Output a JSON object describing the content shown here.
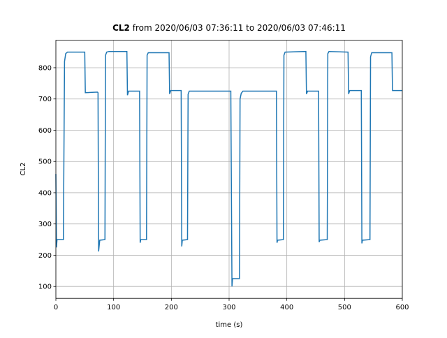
{
  "chart_data": {
    "type": "line",
    "title_bold": "CL2",
    "title": "from 2020/06/03 07:36:11 to 2020/06/03 07:46:11",
    "xlabel": "time (s)",
    "ylabel": "CL2",
    "x": [
      0,
      1,
      2,
      13,
      15,
      17,
      20,
      50,
      51,
      72,
      73,
      74,
      76,
      85,
      86,
      88,
      92,
      123,
      124,
      126,
      145,
      146,
      147,
      157,
      158,
      160,
      196,
      197,
      199,
      217,
      218,
      219,
      228,
      229,
      231,
      303,
      304,
      305,
      306,
      318,
      319,
      321,
      324,
      382,
      383,
      384,
      394,
      395,
      397,
      433,
      434,
      436,
      455,
      456,
      457,
      470,
      471,
      473,
      506,
      507,
      509,
      529,
      530,
      531,
      544,
      545,
      547,
      582,
      583,
      600
    ],
    "series": [
      {
        "color": "#1f77b4",
        "values": [
          460,
          225,
          250,
          250,
          820,
          845,
          850,
          850,
          720,
          722,
          720,
          212,
          248,
          250,
          840,
          850,
          852,
          852,
          712,
          725,
          725,
          240,
          250,
          250,
          840,
          848,
          848,
          716,
          727,
          727,
          228,
          248,
          250,
          715,
          725,
          725,
          400,
          100,
          125,
          125,
          700,
          718,
          725,
          725,
          240,
          248,
          250,
          840,
          850,
          852,
          716,
          725,
          725,
          242,
          248,
          250,
          845,
          852,
          850,
          716,
          727,
          727,
          238,
          248,
          250,
          835,
          848,
          848,
          727,
          727
        ]
      }
    ],
    "xlim": [
      0,
      600
    ],
    "ylim": [
      62,
      888
    ],
    "xticks": [
      0,
      100,
      200,
      300,
      400,
      500,
      600
    ],
    "yticks": [
      100,
      200,
      300,
      400,
      500,
      600,
      700,
      800
    ],
    "grid": true
  }
}
